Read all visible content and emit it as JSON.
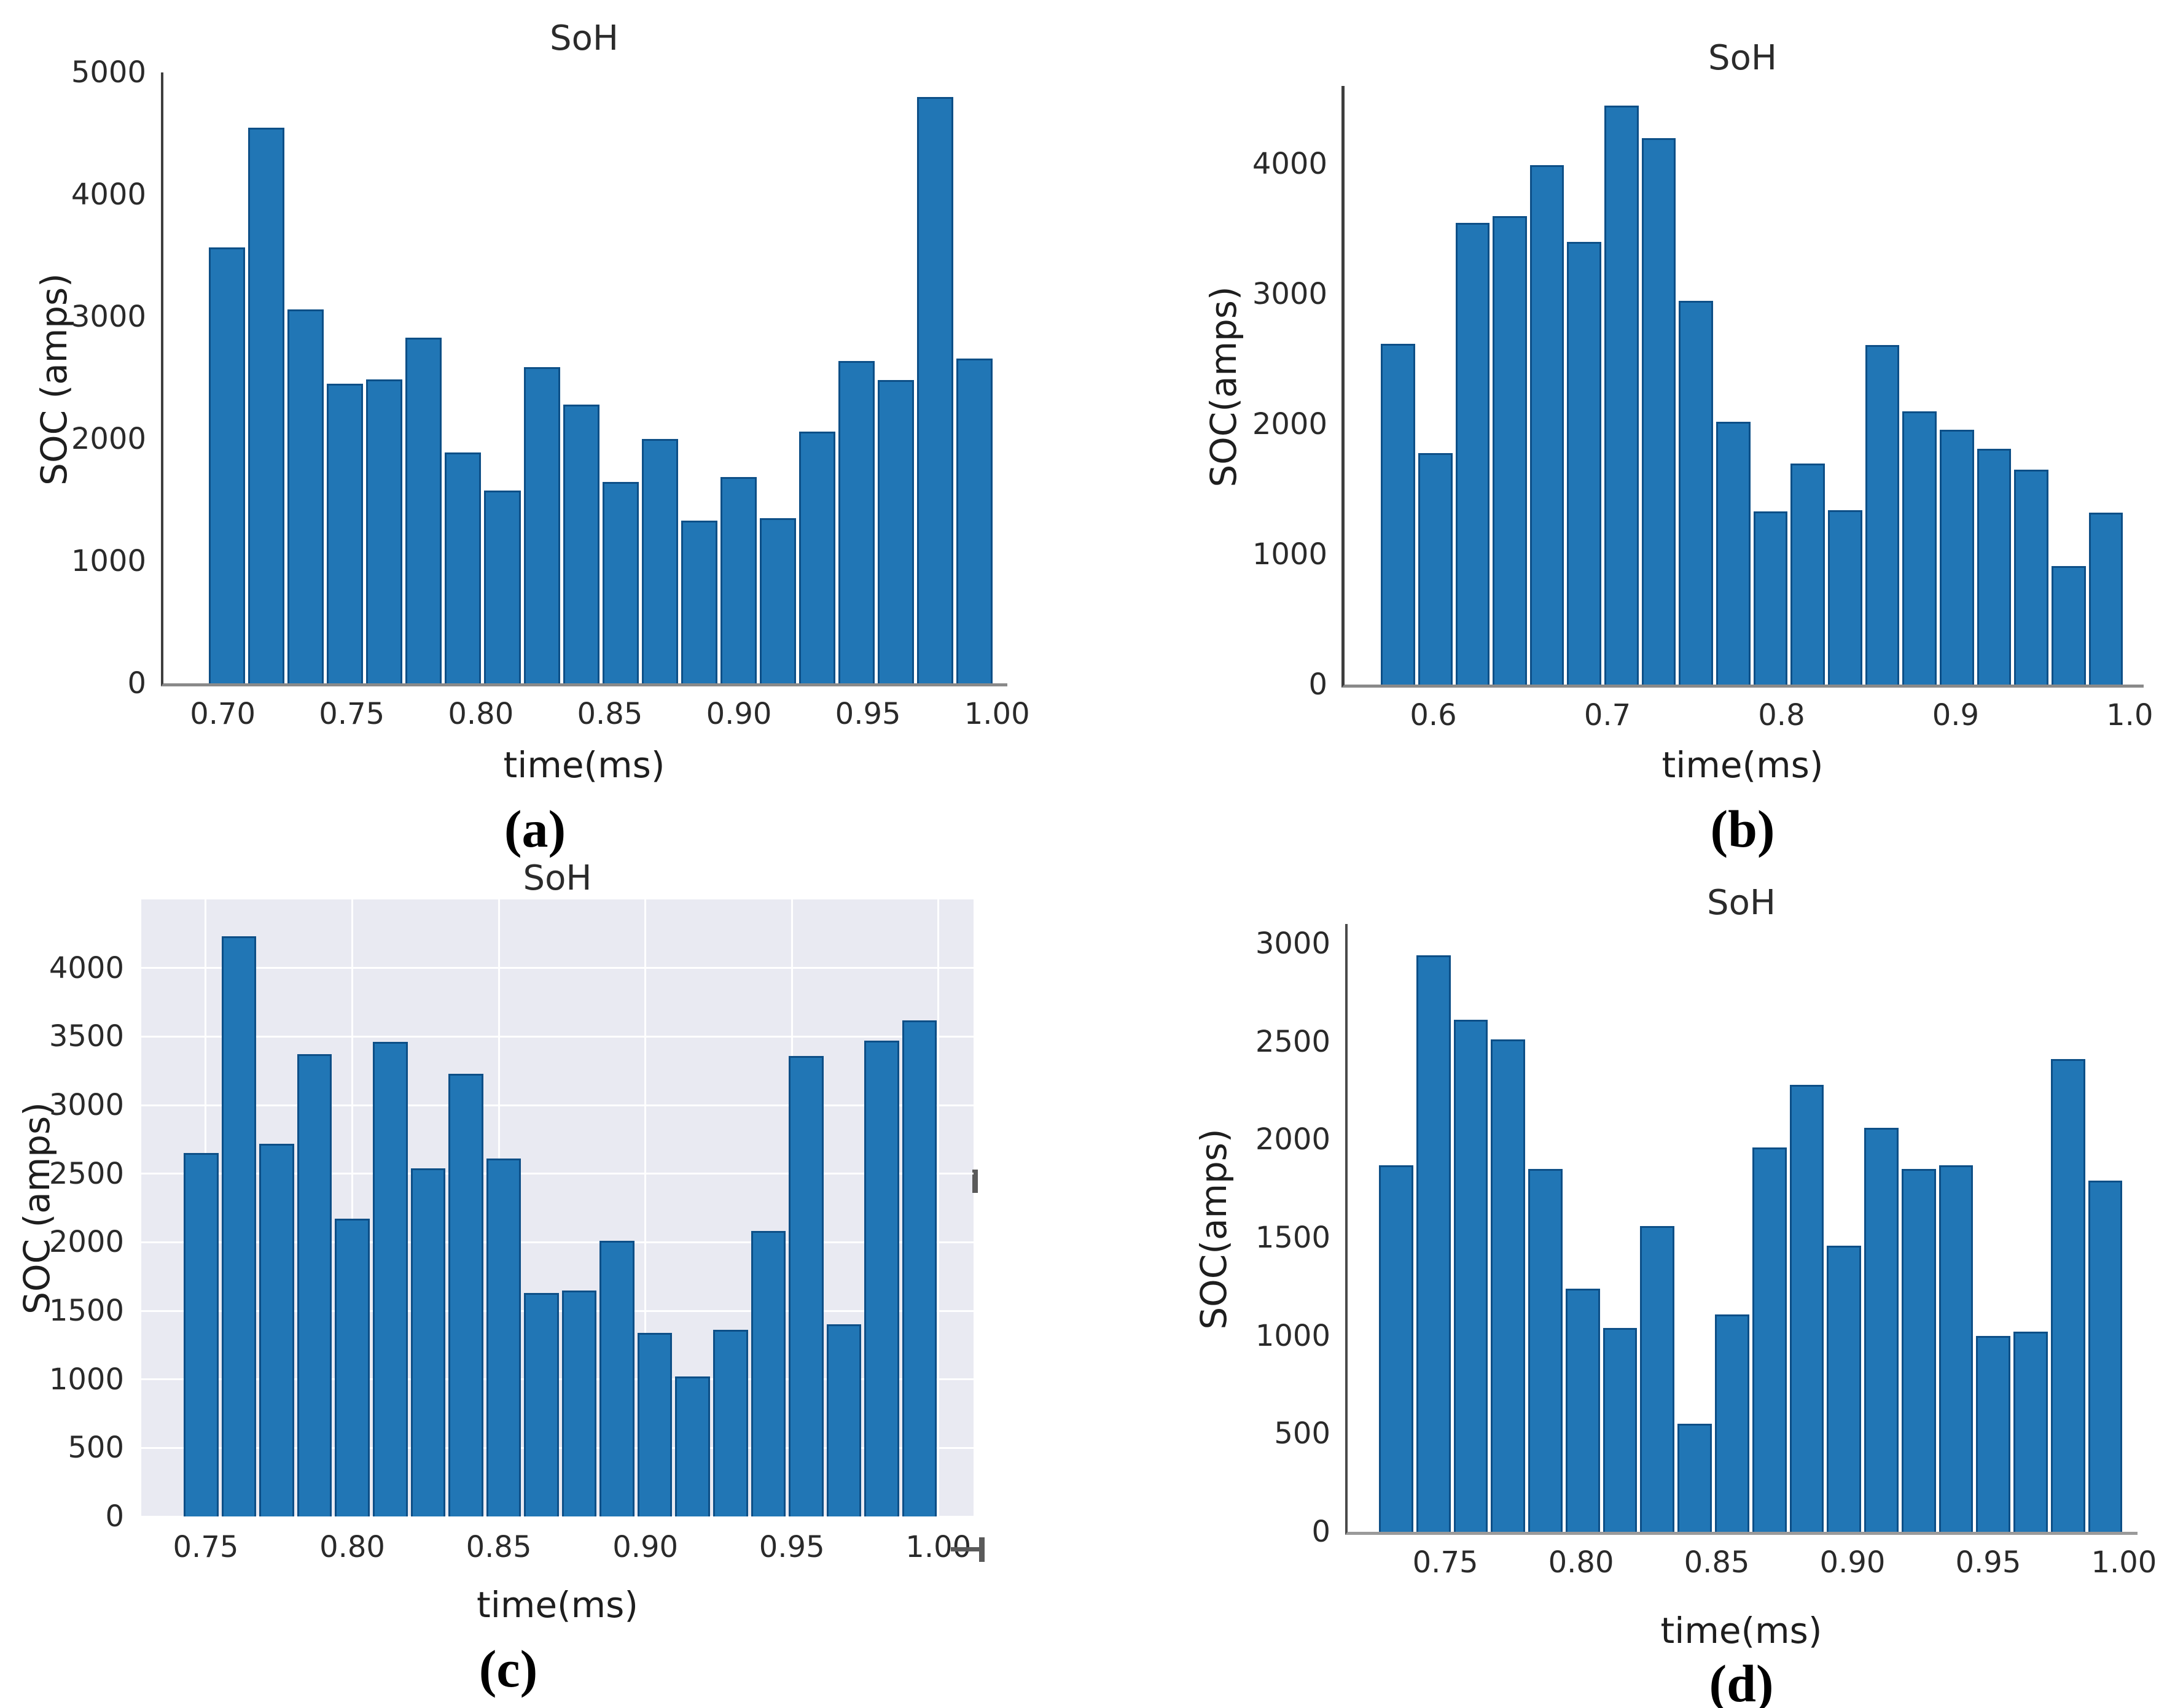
{
  "figure": {
    "title": "SoH histograms",
    "background": "#ffffff"
  },
  "style": {
    "bar_fill": "#2176b5",
    "bar_edge": "#0d4f87",
    "text_color": "#1e1e1e",
    "shaded_panel_bg": "#e9eaf2",
    "grid_color": "#ffffff",
    "spine_color": "#3e3e3e"
  },
  "artifacts": [
    {
      "name": "stray-dash-right-of-panel-c",
      "shape": "vertical-dash"
    },
    {
      "name": "stray-tee-below-panel-c",
      "shape": "tee-mark"
    }
  ],
  "chart_data": [
    {
      "id": "a",
      "type": "bar",
      "kind": "histogram",
      "caption": "(a)",
      "title": "SoH",
      "xlabel": "time(ms)",
      "ylabel": "SOC (amps)",
      "xlim": [
        0.677,
        1.004
      ],
      "ylim": [
        0,
        5000
      ],
      "xticks": [
        0.7,
        0.75,
        0.8,
        0.85,
        0.9,
        0.95,
        1.0
      ],
      "xtick_labels": [
        "0.70",
        "0.75",
        "0.80",
        "0.85",
        "0.90",
        "0.95",
        "1.00"
      ],
      "yticks": [
        0,
        1000,
        2000,
        3000,
        4000,
        5000
      ],
      "ytick_labels": [
        "0",
        "1000",
        "2000",
        "3000",
        "4000",
        "5000"
      ],
      "bin_start": 0.694,
      "bin_width": 0.01525,
      "values": [
        3570,
        4550,
        3060,
        2450,
        2490,
        2830,
        1890,
        1580,
        2590,
        2280,
        1650,
        2000,
        1330,
        1690,
        1350,
        2060,
        2640,
        2480,
        4800,
        2660
      ],
      "grid": false,
      "shaded_background": false,
      "spines": true,
      "legend": null
    },
    {
      "id": "b",
      "type": "bar",
      "kind": "histogram",
      "caption": "(b)",
      "title": "SoH",
      "xlabel": "time(ms)",
      "ylabel": "SOC(amps)",
      "xlim": [
        0.549,
        1.008
      ],
      "ylim": [
        0,
        4600
      ],
      "xticks": [
        0.6,
        0.7,
        0.8,
        0.9,
        1.0
      ],
      "xtick_labels": [
        "0.6",
        "0.7",
        "0.8",
        "0.9",
        "1.0"
      ],
      "yticks": [
        0,
        1000,
        2000,
        3000,
        4000
      ],
      "ytick_labels": [
        "0",
        "1000",
        "2000",
        "3000",
        "4000"
      ],
      "bin_start": 0.569,
      "bin_width": 0.0214,
      "values": [
        2620,
        1780,
        3550,
        3600,
        3990,
        3400,
        4450,
        4200,
        2950,
        2020,
        1330,
        1700,
        1340,
        2610,
        2100,
        1960,
        1810,
        1650,
        910,
        1320
      ],
      "grid": false,
      "shaded_background": false,
      "spines": true,
      "legend": null
    },
    {
      "id": "c",
      "type": "bar",
      "kind": "histogram",
      "caption": "(c)",
      "title": "SoH",
      "xlabel": "time(ms)",
      "ylabel": "SOC (amps)",
      "xlim": [
        0.728,
        1.012
      ],
      "ylim": [
        0,
        4500
      ],
      "xticks": [
        0.75,
        0.8,
        0.85,
        0.9,
        0.95,
        1.0
      ],
      "xtick_labels": [
        "0.75",
        "0.80",
        "0.85",
        "0.90",
        "0.95",
        "1.00"
      ],
      "yticks": [
        0,
        500,
        1000,
        1500,
        2000,
        2500,
        3000,
        3500,
        4000
      ],
      "ytick_labels": [
        "0",
        "500",
        "1000",
        "1500",
        "2000",
        "2500",
        "3000",
        "3500",
        "4000"
      ],
      "bin_start": 0.742,
      "bin_width": 0.0129,
      "values": [
        2650,
        4230,
        2720,
        3370,
        2170,
        3460,
        2540,
        3230,
        2610,
        1630,
        1650,
        2010,
        1340,
        1020,
        1360,
        2080,
        3360,
        1400,
        3470,
        3620
      ],
      "grid": true,
      "shaded_background": true,
      "spines": false,
      "legend": null
    },
    {
      "id": "d",
      "type": "bar",
      "kind": "histogram",
      "caption": "(d)",
      "title": "SoH",
      "xlabel": "time(ms)",
      "ylabel": "SOC(amps)",
      "xlim": [
        0.714,
        1.005
      ],
      "ylim": [
        0,
        3100
      ],
      "xticks": [
        0.75,
        0.8,
        0.85,
        0.9,
        0.95,
        1.0
      ],
      "xtick_labels": [
        "0.75",
        "0.80",
        "0.85",
        "0.90",
        "0.95",
        "1.00"
      ],
      "yticks": [
        0,
        500,
        1000,
        1500,
        2000,
        2500,
        3000
      ],
      "ytick_labels": [
        "0",
        "500",
        "1000",
        "1500",
        "2000",
        "2500",
        "3000"
      ],
      "bin_start": 0.725,
      "bin_width": 0.01375,
      "values": [
        1870,
        2940,
        2610,
        2510,
        1850,
        1240,
        1040,
        1560,
        550,
        1110,
        1960,
        2280,
        1460,
        2060,
        1850,
        1870,
        1000,
        1020,
        2410,
        1790
      ],
      "grid": false,
      "shaded_background": false,
      "spines": true,
      "legend": null
    }
  ]
}
